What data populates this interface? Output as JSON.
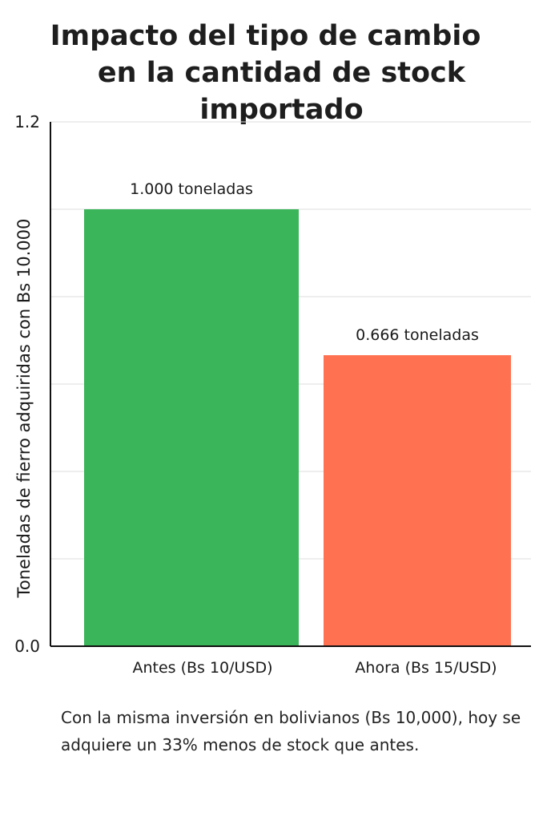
{
  "title_line1": "Impacto del tipo de cambio",
  "title_line2": "en la cantidad de stock importado",
  "caption": "Con la misma inversión en bolivianos (Bs 10,000), hoy se adquiere un 33% menos de stock que antes.",
  "chart_data": {
    "type": "bar",
    "categories": [
      "Antes (Bs 10/USD)",
      "Ahora (Bs 15/USD)"
    ],
    "values": [
      1.0,
      0.666
    ],
    "data_labels": [
      "1.000 toneladas",
      "0.666 toneladas"
    ],
    "colors": [
      "#3bb55a",
      "#ff7150"
    ],
    "ylabel": "Toneladas de fierro adquiridas con Bs 10.000",
    "xlabel": "",
    "ylim": [
      0,
      1.2
    ],
    "yticks": [
      0.0,
      0.2,
      0.4,
      0.6,
      0.8,
      1.0,
      1.2
    ],
    "ytick_labels": [
      "0.0",
      "",
      "",
      "",
      "",
      "",
      "1.2"
    ],
    "grid": true,
    "grid_color": "#dddddd"
  }
}
